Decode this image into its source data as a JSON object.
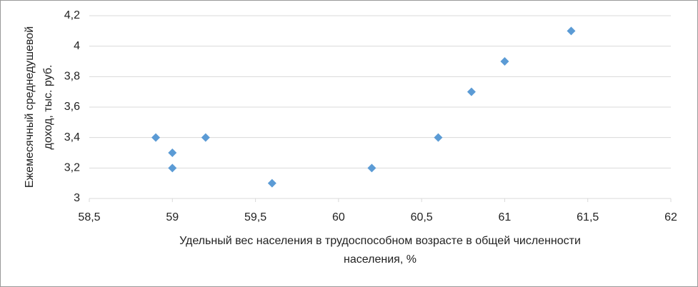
{
  "chart_data": {
    "type": "scatter",
    "x_label": [
      "Удельный вес населения в трудоспособном возрасте в общей численности",
      "населения, %"
    ],
    "y_label": [
      "Ежемесячный среднедушевой",
      "доход, тыс. руб."
    ],
    "x": [
      58.9,
      59.0,
      59.0,
      59.2,
      59.6,
      60.2,
      60.6,
      60.8,
      61.0,
      61.4
    ],
    "series": [
      {
        "name": null,
        "color": "#5b9bd5",
        "values": [
          3.4,
          3.3,
          3.2,
          3.4,
          3.1,
          3.2,
          3.4,
          3.7,
          3.9,
          4.1
        ]
      }
    ],
    "xlim": [
      58.5,
      62
    ],
    "xticks": [
      {
        "value": 58.5,
        "label": "58,5"
      },
      59,
      {
        "value": 59.5,
        "label": "59,5"
      },
      60,
      {
        "value": 60.5,
        "label": "60,5"
      },
      61,
      {
        "value": 61.5,
        "label": "61,5"
      },
      62
    ],
    "ylim": [
      3,
      4.2
    ],
    "yticks": [
      3,
      {
        "value": 3.2,
        "label": "3,2"
      },
      {
        "value": 3.4,
        "label": "3,4"
      },
      {
        "value": 3.6,
        "label": "3,6"
      },
      {
        "value": 3.8,
        "label": "3,8"
      },
      4,
      {
        "value": 4.2,
        "label": "4,2"
      }
    ],
    "grid": true
  }
}
